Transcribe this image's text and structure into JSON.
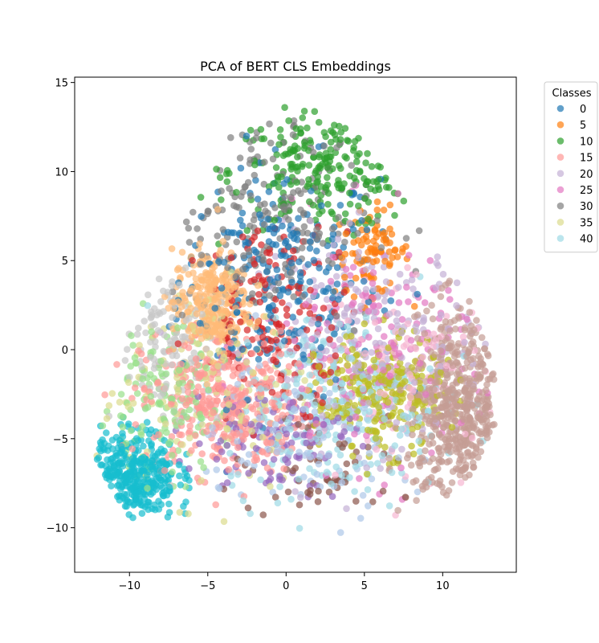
{
  "chart_data": {
    "type": "scatter",
    "title": "PCA of BERT CLS Embeddings",
    "xlabel": "",
    "ylabel": "",
    "xlim": [
      -13.5,
      14.7
    ],
    "ylim": [
      -12.5,
      15.3
    ],
    "x_ticks": [
      -10,
      -5,
      0,
      5,
      10
    ],
    "y_ticks": [
      -10,
      -5,
      0,
      5,
      10,
      15
    ],
    "grid": false,
    "marker_alpha": 0.7,
    "legend": {
      "title": "Classes",
      "placement": "outside-upper-right",
      "entries": [
        "0",
        "5",
        "10",
        "15",
        "20",
        "25",
        "30",
        "35",
        "40"
      ]
    },
    "series": [
      {
        "name": "0",
        "color": "#1f77b4",
        "center": [
          -0.5,
          4.0
        ],
        "spread": [
          3.2,
          3.2
        ],
        "count": 260
      },
      {
        "name": "5",
        "color": "#ff7f0e",
        "center": [
          5.5,
          5.5
        ],
        "spread": [
          1.2,
          1.2
        ],
        "count": 90
      },
      {
        "name": "10",
        "color": "#2ca02c",
        "center": [
          2.5,
          10.0
        ],
        "spread": [
          3.0,
          1.6
        ],
        "count": 220
      },
      {
        "name": "15",
        "color": "#ff9896",
        "center": [
          -4.0,
          -3.0
        ],
        "spread": [
          2.6,
          2.0
        ],
        "count": 380
      },
      {
        "name": "20",
        "color": "#c5b0d5",
        "center": [
          5.5,
          0.5
        ],
        "spread": [
          3.6,
          3.0
        ],
        "count": 230
      },
      {
        "name": "25",
        "color": "#e377c2",
        "center": [
          6.0,
          0.0
        ],
        "spread": [
          3.8,
          3.4
        ],
        "count": 160
      },
      {
        "name": "30",
        "color": "#7f7f7f",
        "center": [
          -1.5,
          7.5
        ],
        "spread": [
          3.5,
          3.0
        ],
        "count": 200
      },
      {
        "name": "35",
        "color": "#dbdb8d",
        "center": [
          -5.0,
          -2.0
        ],
        "spread": [
          3.5,
          3.0
        ],
        "count": 140
      },
      {
        "name": "40",
        "color": "#9edae5",
        "center": [
          3.0,
          -3.0
        ],
        "spread": [
          3.5,
          2.6
        ],
        "count": 260
      },
      {
        "color": "#ffbb78",
        "center": [
          -4.8,
          2.5
        ],
        "spread": [
          1.2,
          1.5
        ],
        "count": 300
      },
      {
        "color": "#17becf",
        "center": [
          -9.8,
          -7.0
        ],
        "spread": [
          1.4,
          1.3
        ],
        "count": 340
      },
      {
        "color": "#c49c94",
        "center": [
          11.0,
          -3.5
        ],
        "spread": [
          1.6,
          2.8
        ],
        "count": 520
      },
      {
        "color": "#bcbd22",
        "center": [
          6.0,
          -2.5
        ],
        "spread": [
          2.0,
          1.6
        ],
        "count": 260
      },
      {
        "color": "#d62728",
        "center": [
          -0.5,
          2.0
        ],
        "spread": [
          2.5,
          2.5
        ],
        "count": 170
      },
      {
        "color": "#aec7e8",
        "center": [
          1.0,
          -4.0
        ],
        "spread": [
          3.5,
          2.5
        ],
        "count": 150
      },
      {
        "color": "#9467bd",
        "center": [
          -1.0,
          -5.0
        ],
        "spread": [
          2.5,
          1.5
        ],
        "count": 110
      },
      {
        "color": "#98df8a",
        "center": [
          -8.0,
          -3.0
        ],
        "spread": [
          2.0,
          2.0
        ],
        "count": 140
      },
      {
        "color": "#f7b6d2",
        "center": [
          8.0,
          -1.0
        ],
        "spread": [
          3.0,
          2.5
        ],
        "count": 110
      },
      {
        "color": "#c7c7c7",
        "center": [
          -7.5,
          0.5
        ],
        "spread": [
          1.6,
          2.4
        ],
        "count": 120
      },
      {
        "color": "#8c564b",
        "center": [
          2.5,
          -6.5
        ],
        "spread": [
          3.0,
          1.6
        ],
        "count": 60
      }
    ]
  }
}
